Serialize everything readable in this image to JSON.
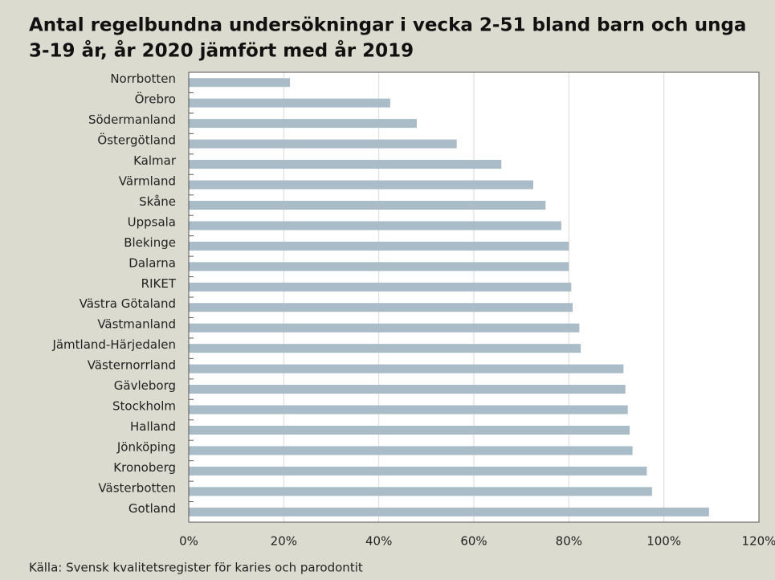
{
  "chart_data": {
    "type": "barh",
    "title": "Antal regelbundna undersökningar i vecka 2-51 bland barn och unga 3-19 år, år 2020 jämfört med år 2019",
    "source": "Källa: Svensk kvalitetsregister för karies och parodontit",
    "categories": [
      "Norrbotten",
      "Örebro",
      "Södermanland",
      "Östergötland",
      "Kalmar",
      "Värmland",
      "Skåne",
      "Uppsala",
      "Blekinge",
      "Dalarna",
      "RIKET",
      "Västra Götaland",
      "Västmanland",
      "Jämtland-Härjedalen",
      "Västernorrland",
      "Gävleborg",
      "Stockholm",
      "Halland",
      "Jönköping",
      "Kronoberg",
      "Västerbotten",
      "Gotland"
    ],
    "values": [
      21.3,
      42.4,
      48.0,
      56.4,
      65.8,
      72.5,
      75.1,
      78.4,
      80.0,
      80.0,
      80.5,
      80.8,
      82.2,
      82.5,
      91.5,
      91.9,
      92.4,
      92.8,
      93.4,
      96.4,
      97.5,
      109.5
    ],
    "color": "#a9bcc7",
    "xlim": [
      0,
      120
    ],
    "xticks": [
      {
        "value": 0,
        "label": "0%"
      },
      {
        "value": 20,
        "label": "20%"
      },
      {
        "value": 40,
        "label": "40%"
      },
      {
        "value": 60,
        "label": "60%"
      },
      {
        "value": 80,
        "label": "80%"
      },
      {
        "value": 100,
        "label": "100%"
      },
      {
        "value": 120,
        "label": "120%"
      }
    ],
    "grid": true
  }
}
